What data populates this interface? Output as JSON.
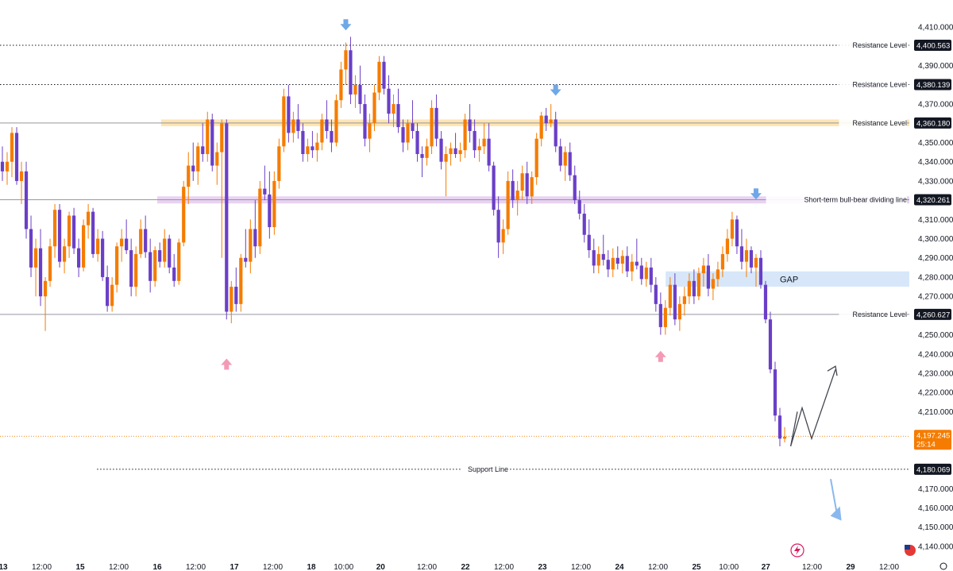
{
  "chart_data": {
    "type": "candlestick",
    "y_axis": {
      "min": 4135,
      "max": 4420,
      "position": "right",
      "ticks": [
        4410,
        4390,
        4370,
        4350,
        4340,
        4330,
        4310,
        4300,
        4290,
        4280,
        4270,
        4250,
        4240,
        4230,
        4220,
        4210,
        4170,
        4160,
        4150,
        4140
      ],
      "tick_labels": [
        "4,410.000",
        "4,390.000",
        "4,370.000",
        "4,350.000",
        "4,340.000",
        "4,330.000",
        "4,310.000",
        "4,300.000",
        "4,290.000",
        "4,280.000",
        "4,270.000",
        "4,250.000",
        "4,240.000",
        "4,230.000",
        "4,220.000",
        "4,210.000",
        "4,170.000",
        "4,160.000",
        "4,150.000",
        "4,140.000"
      ]
    },
    "x_axis": {
      "labels": [
        {
          "text": "13",
          "bold": true,
          "pos": 0.0
        },
        {
          "text": "12:00",
          "bold": false,
          "pos": 0.5
        },
        {
          "text": "15",
          "bold": true,
          "pos": 1.0
        },
        {
          "text": "12:00",
          "bold": false,
          "pos": 1.5
        },
        {
          "text": "16",
          "bold": true,
          "pos": 2.0
        },
        {
          "text": "12:00",
          "bold": false,
          "pos": 2.5
        },
        {
          "text": "17",
          "bold": true,
          "pos": 3.0
        },
        {
          "text": "12:00",
          "bold": false,
          "pos": 3.5
        },
        {
          "text": "18",
          "bold": true,
          "pos": 4.0
        },
        {
          "text": "10:00",
          "bold": false,
          "pos": 4.42
        },
        {
          "text": "20",
          "bold": true,
          "pos": 4.9
        },
        {
          "text": "12:00",
          "bold": false,
          "pos": 5.5
        },
        {
          "text": "22",
          "bold": true,
          "pos": 6.0
        },
        {
          "text": "12:00",
          "bold": false,
          "pos": 6.5
        },
        {
          "text": "23",
          "bold": true,
          "pos": 7.0
        },
        {
          "text": "12:00",
          "bold": false,
          "pos": 7.5
        },
        {
          "text": "24",
          "bold": true,
          "pos": 8.0
        },
        {
          "text": "12:00",
          "bold": false,
          "pos": 8.5
        },
        {
          "text": "25",
          "bold": true,
          "pos": 9.0
        },
        {
          "text": "10:00",
          "bold": false,
          "pos": 9.42
        },
        {
          "text": "27",
          "bold": true,
          "pos": 9.9
        },
        {
          "text": "12:00",
          "bold": false,
          "pos": 10.5
        },
        {
          "text": "29",
          "bold": true,
          "pos": 11.0
        },
        {
          "text": "12:00",
          "bold": false,
          "pos": 11.5
        }
      ]
    },
    "levels": [
      {
        "value": 4400.563,
        "label": "Resistance Level",
        "badge": "4,400.563",
        "style": "dotted",
        "color": "#131722",
        "x_from": 0
      },
      {
        "value": 4380.139,
        "label": "Resistance Level",
        "badge": "4,380.139",
        "style": "dotted",
        "color": "#131722",
        "x_from": 0
      },
      {
        "value": 4360.18,
        "label": "Resistance Level",
        "badge": "4,360.180",
        "style": "solid",
        "color": "#9598a1",
        "x_from": 0
      },
      {
        "value": 4320.261,
        "label": "Short-term bull-bear dividing line",
        "badge": "4,320.261",
        "style": "solid",
        "color": "#9598a1",
        "x_from": 0
      },
      {
        "value": 4260.627,
        "label": "Resistance Level",
        "badge": "4,260.627",
        "style": "solid",
        "color": "#9598a1",
        "x_from": 0
      },
      {
        "value": 4180.069,
        "label": "Support Line",
        "badge": "4,180.069",
        "style": "dotted",
        "color": "#131722",
        "x_from": 0.62
      }
    ],
    "zones": [
      {
        "name": "orange-zone",
        "from": 4358.5,
        "to": 4362.0,
        "color": "#f7a600",
        "opacity": 0.3,
        "x_from": 2.05
      },
      {
        "name": "purple-zone",
        "from": 4318.3,
        "to": 4322.0,
        "color": "#b36ad1",
        "opacity": 0.3,
        "x_from": 2.0
      },
      {
        "name": "gap-zone",
        "from": 4275.0,
        "to": 4283.0,
        "color": "#bcd7f5",
        "opacity": 0.6,
        "x_from": 8.6,
        "label": "GAP"
      }
    ],
    "current_price": {
      "value": 4197.245,
      "badge": "4,197.245",
      "timer": "25:14",
      "color": "#f57c00"
    },
    "series_colors": {
      "up": "#f57c00",
      "down": "#6a3fc7"
    },
    "candles": [
      [
        4340,
        4348,
        4330,
        4335
      ],
      [
        4335,
        4345,
        4328,
        4340
      ],
      [
        4340,
        4358,
        4332,
        4355
      ],
      [
        4355,
        4358,
        4328,
        4330
      ],
      [
        4330,
        4340,
        4318,
        4335
      ],
      [
        4335,
        4340,
        4300,
        4305
      ],
      [
        4305,
        4312,
        4280,
        4285
      ],
      [
        4285,
        4300,
        4270,
        4295
      ],
      [
        4295,
        4305,
        4265,
        4270
      ],
      [
        4270,
        4280,
        4252,
        4278
      ],
      [
        4278,
        4300,
        4275,
        4296
      ],
      [
        4296,
        4318,
        4290,
        4315
      ],
      [
        4315,
        4318,
        4285,
        4288
      ],
      [
        4288,
        4300,
        4282,
        4296
      ],
      [
        4296,
        4314,
        4290,
        4312
      ],
      [
        4312,
        4316,
        4292,
        4295
      ],
      [
        4295,
        4300,
        4280,
        4285
      ],
      [
        4285,
        4310,
        4283,
        4307
      ],
      [
        4307,
        4318,
        4300,
        4314
      ],
      [
        4314,
        4316,
        4290,
        4292
      ],
      [
        4292,
        4305,
        4288,
        4300
      ],
      [
        4300,
        4304,
        4278,
        4280
      ],
      [
        4280,
        4286,
        4262,
        4265
      ],
      [
        4265,
        4280,
        4262,
        4276
      ],
      [
        4276,
        4298,
        4272,
        4296
      ],
      [
        4296,
        4305,
        4288,
        4300
      ],
      [
        4300,
        4310,
        4292,
        4294
      ],
      [
        4294,
        4300,
        4270,
        4275
      ],
      [
        4275,
        4296,
        4270,
        4292
      ],
      [
        4292,
        4310,
        4290,
        4305
      ],
      [
        4305,
        4312,
        4290,
        4293
      ],
      [
        4293,
        4300,
        4272,
        4278
      ],
      [
        4278,
        4296,
        4275,
        4294
      ],
      [
        4294,
        4298,
        4285,
        4288
      ],
      [
        4288,
        4305,
        4285,
        4300
      ],
      [
        4300,
        4302,
        4282,
        4285
      ],
      [
        4285,
        4292,
        4275,
        4278
      ],
      [
        4278,
        4300,
        4276,
        4298
      ],
      [
        4298,
        4330,
        4296,
        4327
      ],
      [
        4327,
        4345,
        4318,
        4338
      ],
      [
        4338,
        4350,
        4330,
        4335
      ],
      [
        4335,
        4350,
        4328,
        4348
      ],
      [
        4348,
        4360,
        4340,
        4344
      ],
      [
        4344,
        4366,
        4340,
        4362
      ],
      [
        4362,
        4365,
        4335,
        4338
      ],
      [
        4338,
        4350,
        4328,
        4345
      ],
      [
        4345,
        4362,
        4290,
        4360
      ],
      [
        4360,
        4362,
        4258,
        4262
      ],
      [
        4262,
        4278,
        4256,
        4275
      ],
      [
        4275,
        4285,
        4262,
        4266
      ],
      [
        4266,
        4292,
        4262,
        4290
      ],
      [
        4290,
        4305,
        4285,
        4288
      ],
      [
        4288,
        4310,
        4282,
        4305
      ],
      [
        4305,
        4320,
        4290,
        4296
      ],
      [
        4296,
        4330,
        4292,
        4326
      ],
      [
        4326,
        4338,
        4320,
        4323
      ],
      [
        4323,
        4335,
        4300,
        4306
      ],
      [
        4306,
        4335,
        4302,
        4330
      ],
      [
        4330,
        4352,
        4326,
        4348
      ],
      [
        4348,
        4378,
        4345,
        4374
      ],
      [
        4374,
        4380,
        4350,
        4355
      ],
      [
        4355,
        4366,
        4350,
        4362
      ],
      [
        4362,
        4370,
        4352,
        4356
      ],
      [
        4356,
        4360,
        4340,
        4344
      ],
      [
        4344,
        4352,
        4340,
        4348
      ],
      [
        4348,
        4356,
        4342,
        4346
      ],
      [
        4346,
        4355,
        4340,
        4350
      ],
      [
        4350,
        4365,
        4346,
        4362
      ],
      [
        4362,
        4372,
        4352,
        4356
      ],
      [
        4356,
        4362,
        4345,
        4350
      ],
      [
        4350,
        4375,
        4348,
        4372
      ],
      [
        4372,
        4392,
        4368,
        4388
      ],
      [
        4388,
        4402,
        4380,
        4398
      ],
      [
        4398,
        4405,
        4370,
        4375
      ],
      [
        4375,
        4385,
        4368,
        4380
      ],
      [
        4380,
        4390,
        4365,
        4370
      ],
      [
        4370,
        4375,
        4348,
        4352
      ],
      [
        4352,
        4365,
        4345,
        4360
      ],
      [
        4360,
        4380,
        4356,
        4376
      ],
      [
        4376,
        4395,
        4372,
        4392
      ],
      [
        4392,
        4395,
        4375,
        4378
      ],
      [
        4378,
        4385,
        4360,
        4365
      ],
      [
        4365,
        4375,
        4358,
        4370
      ],
      [
        4370,
        4378,
        4355,
        4358
      ],
      [
        4358,
        4362,
        4345,
        4350
      ],
      [
        4350,
        4362,
        4346,
        4360
      ],
      [
        4360,
        4372,
        4352,
        4356
      ],
      [
        4356,
        4360,
        4340,
        4344
      ],
      [
        4344,
        4348,
        4332,
        4342
      ],
      [
        4342,
        4352,
        4338,
        4348
      ],
      [
        4348,
        4372,
        4344,
        4368
      ],
      [
        4368,
        4375,
        4348,
        4352
      ],
      [
        4352,
        4356,
        4336,
        4340
      ],
      [
        4340,
        4348,
        4322,
        4344
      ],
      [
        4344,
        4350,
        4338,
        4347
      ],
      [
        4347,
        4355,
        4342,
        4344
      ],
      [
        4344,
        4350,
        4340,
        4346
      ],
      [
        4346,
        4365,
        4342,
        4362
      ],
      [
        4362,
        4370,
        4350,
        4356
      ],
      [
        4356,
        4362,
        4342,
        4346
      ],
      [
        4346,
        4352,
        4340,
        4348
      ],
      [
        4348,
        4360,
        4344,
        4352
      ],
      [
        4352,
        4360,
        4335,
        4338
      ],
      [
        4338,
        4340,
        4312,
        4315
      ],
      [
        4315,
        4322,
        4290,
        4298
      ],
      [
        4298,
        4310,
        4292,
        4305
      ],
      [
        4305,
        4335,
        4302,
        4330
      ],
      [
        4330,
        4336,
        4316,
        4320
      ],
      [
        4320,
        4330,
        4312,
        4325
      ],
      [
        4325,
        4338,
        4320,
        4334
      ],
      [
        4334,
        4340,
        4318,
        4322
      ],
      [
        4322,
        4335,
        4318,
        4332
      ],
      [
        4332,
        4355,
        4328,
        4352
      ],
      [
        4352,
        4366,
        4348,
        4364
      ],
      [
        4364,
        4368,
        4356,
        4360
      ],
      [
        4360,
        4370,
        4358,
        4362
      ],
      [
        4362,
        4366,
        4345,
        4348
      ],
      [
        4348,
        4352,
        4335,
        4338
      ],
      [
        4338,
        4348,
        4330,
        4345
      ],
      [
        4345,
        4350,
        4330,
        4333
      ],
      [
        4333,
        4338,
        4318,
        4320
      ],
      [
        4320,
        4325,
        4310,
        4313
      ],
      [
        4313,
        4318,
        4298,
        4302
      ],
      [
        4302,
        4310,
        4290,
        4294
      ],
      [
        4294,
        4300,
        4282,
        4286
      ],
      [
        4286,
        4296,
        4282,
        4292
      ],
      [
        4292,
        4302,
        4286,
        4289
      ],
      [
        4289,
        4294,
        4280,
        4284
      ],
      [
        4284,
        4295,
        4280,
        4290
      ],
      [
        4290,
        4296,
        4284,
        4287
      ],
      [
        4287,
        4294,
        4282,
        4291
      ],
      [
        4291,
        4296,
        4280,
        4283
      ],
      [
        4283,
        4292,
        4278,
        4288
      ],
      [
        4288,
        4300,
        4284,
        4286
      ],
      [
        4286,
        4290,
        4276,
        4279
      ],
      [
        4279,
        4288,
        4275,
        4285
      ],
      [
        4285,
        4290,
        4272,
        4276
      ],
      [
        4276,
        4280,
        4262,
        4266
      ],
      [
        4266,
        4272,
        4250,
        4254
      ],
      [
        4254,
        4268,
        4250,
        4264
      ],
      [
        4264,
        4280,
        4260,
        4276
      ],
      [
        4276,
        4282,
        4255,
        4258
      ],
      [
        4258,
        4270,
        4252,
        4266
      ],
      [
        4266,
        4275,
        4260,
        4270
      ],
      [
        4270,
        4282,
        4266,
        4278
      ],
      [
        4278,
        4284,
        4266,
        4270
      ],
      [
        4270,
        4285,
        4268,
        4282
      ],
      [
        4282,
        4290,
        4275,
        4286
      ],
      [
        4286,
        4292,
        4270,
        4274
      ],
      [
        4274,
        4282,
        4268,
        4279
      ],
      [
        4279,
        4288,
        4275,
        4284
      ],
      [
        4284,
        4296,
        4280,
        4292
      ],
      [
        4292,
        4305,
        4288,
        4300
      ],
      [
        4300,
        4314,
        4296,
        4310
      ],
      [
        4310,
        4312,
        4292,
        4296
      ],
      [
        4296,
        4305,
        4284,
        4288
      ],
      [
        4288,
        4300,
        4280,
        4294
      ],
      [
        4294,
        4296,
        4282,
        4285
      ],
      [
        4285,
        4292,
        4275,
        4290
      ],
      [
        4290,
        4294,
        4274,
        4276
      ],
      [
        4276,
        4278,
        4256,
        4258
      ],
      [
        4258,
        4262,
        4230,
        4232
      ],
      [
        4232,
        4236,
        4205,
        4208
      ],
      [
        4208,
        4212,
        4192,
        4196
      ],
      [
        4196,
        4202,
        4194,
        4197
      ]
    ],
    "markers": [
      {
        "type": "down-arrow",
        "index": 72,
        "value": 4410,
        "color": "#6fa8e8"
      },
      {
        "type": "down-arrow",
        "index": 116,
        "value": 4376,
        "color": "#6fa8e8"
      },
      {
        "type": "down-arrow",
        "index": 158,
        "value": 4322,
        "color": "#6fa8e8"
      },
      {
        "type": "up-arrow",
        "index": 47,
        "value": 4236,
        "color": "#f49ab5"
      },
      {
        "type": "up-arrow",
        "index": 138,
        "value": 4240,
        "color": "#f49ab5"
      }
    ],
    "projection": {
      "path": [
        [
          4205,
          4210
        ],
        [
          4198,
          4192
        ],
        [
          4210,
          4212
        ],
        [
          4220,
          4196
        ],
        [
          4245,
          4232
        ]
      ],
      "down_arrow": [
        [
          4240,
          4175
        ],
        [
          4248,
          4155
        ]
      ]
    }
  },
  "footer_icons": [
    "lightning-icon",
    "us-flag-icon",
    "settings-icon"
  ]
}
